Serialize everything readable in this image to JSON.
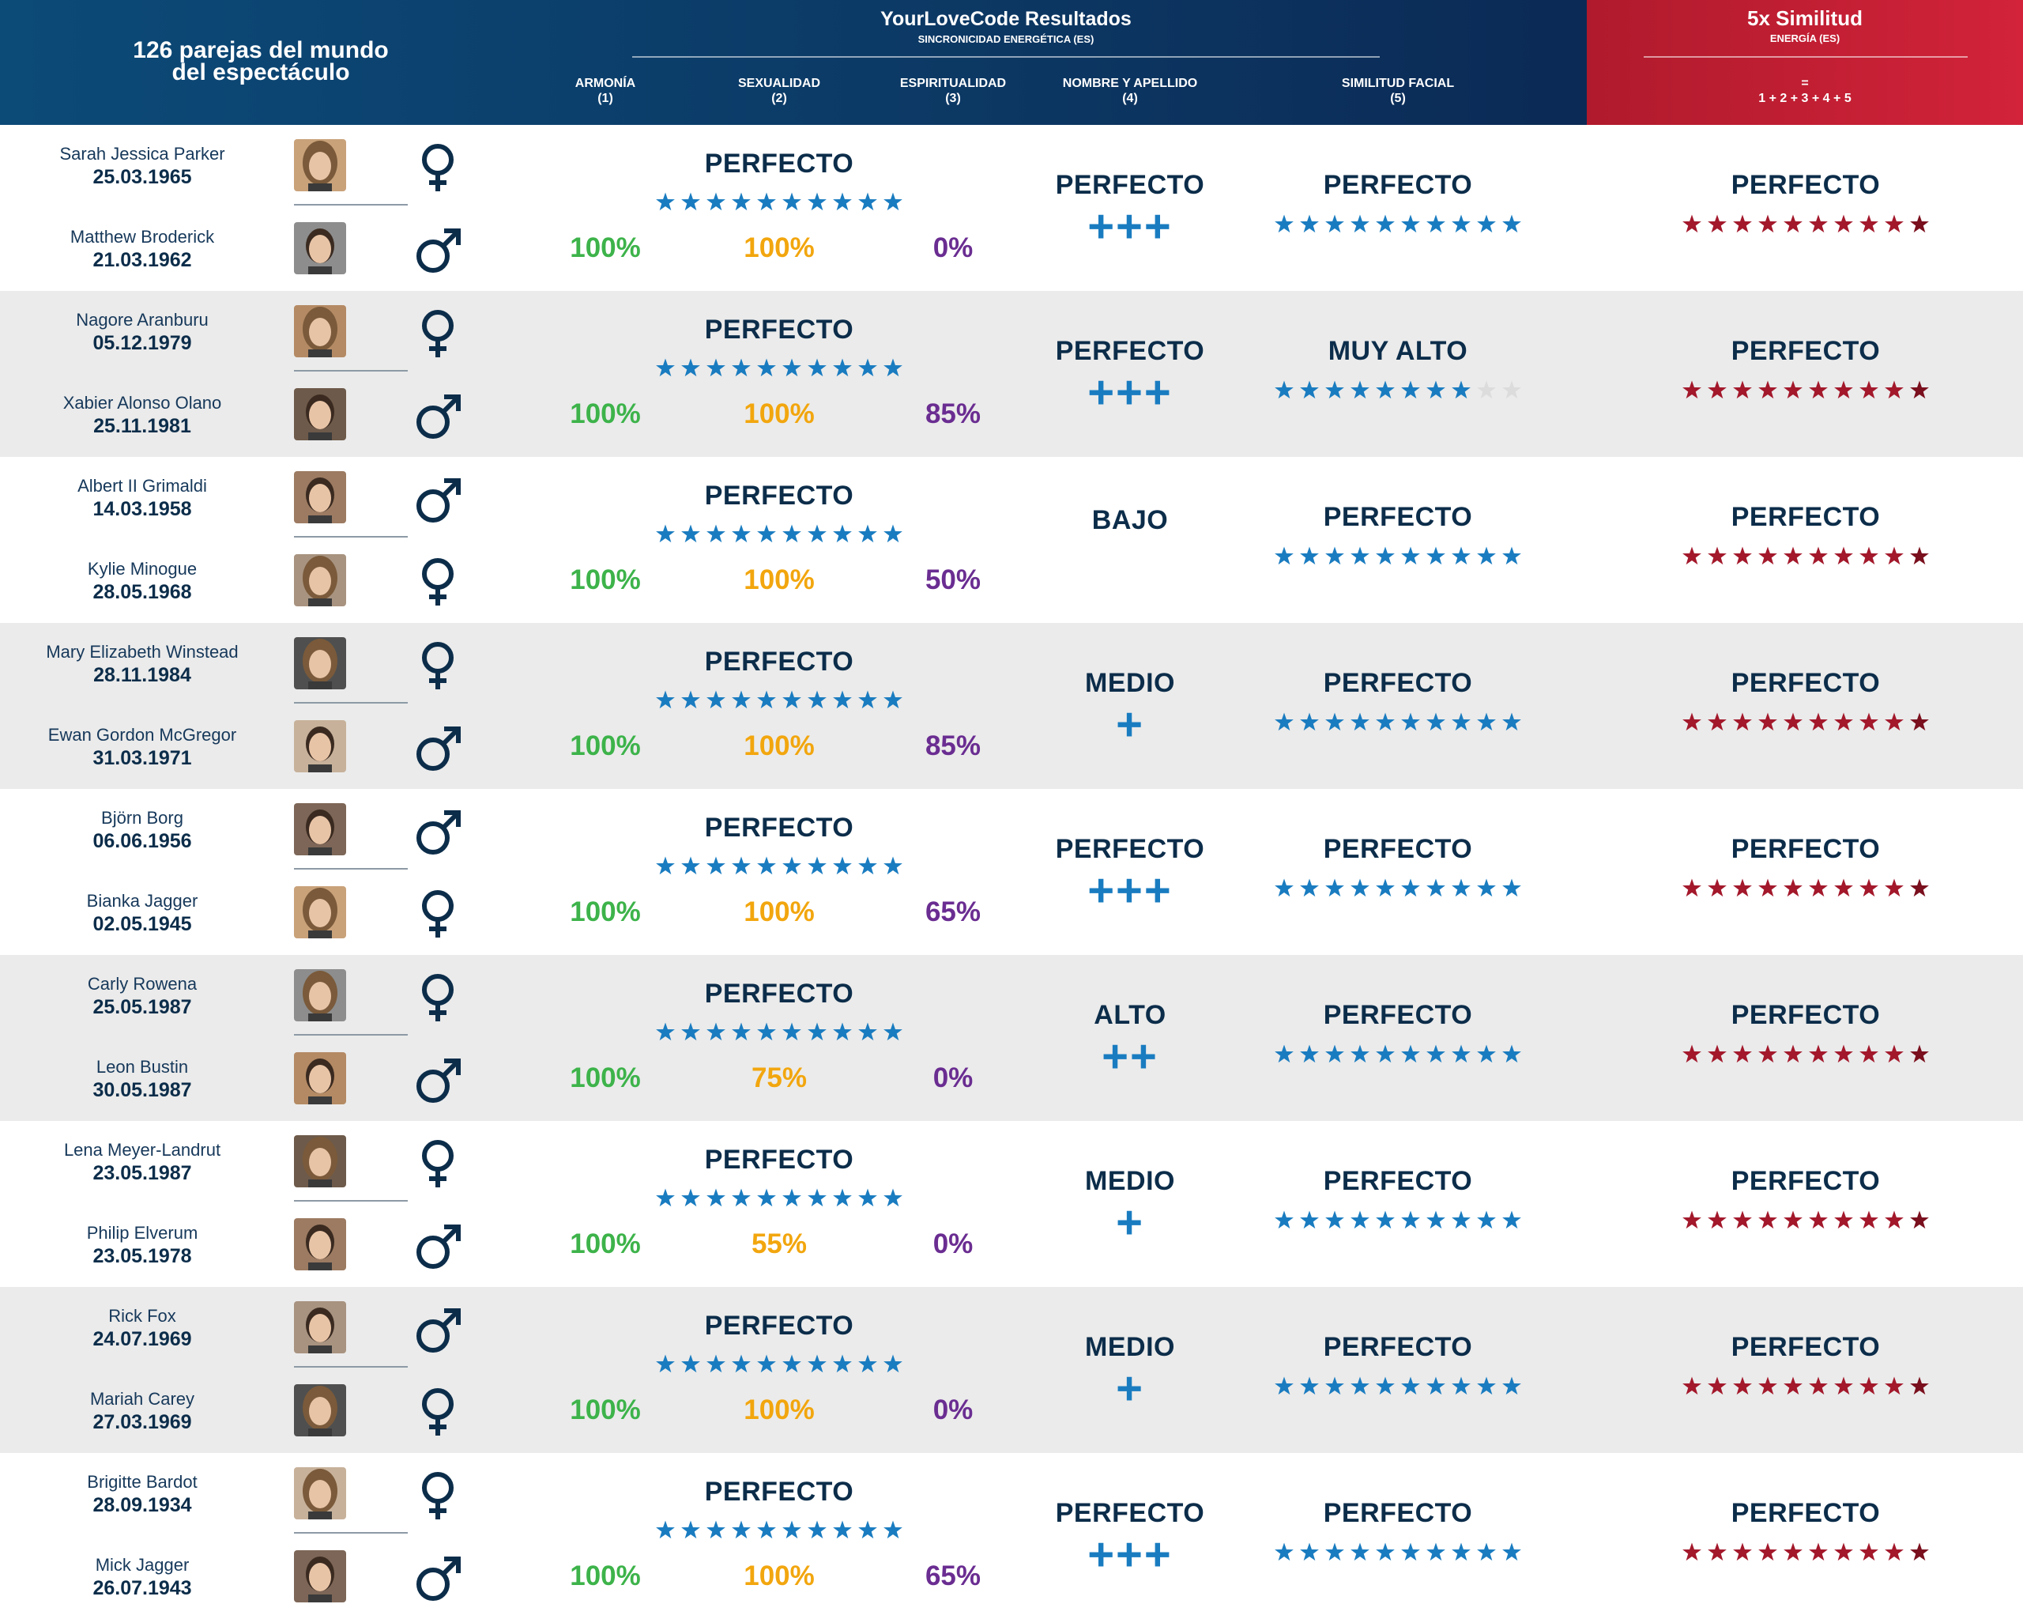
{
  "header": {
    "title_line1": "126 parejas del mundo",
    "title_line2": "del espectáculo",
    "brand": "YourLoveCode Resultados",
    "brand_sub": "SINCRONICIDAD ENERGÉTICA (ES)",
    "columns": [
      {
        "label": "ARMONÍA",
        "num": "(1)"
      },
      {
        "label": "SEXUALIDAD",
        "num": "(2)"
      },
      {
        "label": "ESPIRITUALIDAD",
        "num": "(3)"
      },
      {
        "label": "NOMBRE Y APELLIDO",
        "num": "(4)"
      },
      {
        "label": "SIMILITUD FACIAL",
        "num": "(5)"
      }
    ],
    "summary_title": "5x Similitud",
    "summary_sub": "ENERGÍA (ES)",
    "summary_eq": "=",
    "summary_formula": "1 + 2 + 3 + 4 + 5"
  },
  "colors": {
    "blue": "#1a7cc0",
    "red": "#a3182b",
    "green": "#3db34a",
    "orange": "#f2a60e",
    "purple": "#6a2d91",
    "navy": "#0c2d4a"
  },
  "couples": [
    {
      "p1": {
        "name": "Sarah Jessica Parker",
        "date": "25.03.1965",
        "sex": "female"
      },
      "p2": {
        "name": "Matthew Broderick",
        "date": "21.03.1962",
        "sex": "male"
      },
      "energy_label": "PERFECTO",
      "energy_stars": 10,
      "armonia": "100%",
      "sexualidad": "100%",
      "espiritualidad": "0%",
      "name_label": "PERFECTO",
      "name_plus": "+++",
      "face_label": "PERFECTO",
      "face_stars": 10,
      "total_label": "PERFECTO",
      "total_stars": 10
    },
    {
      "p1": {
        "name": "Nagore Aranburu",
        "date": "05.12.1979",
        "sex": "female"
      },
      "p2": {
        "name": "Xabier Alonso Olano",
        "date": "25.11.1981",
        "sex": "male"
      },
      "energy_label": "PERFECTO",
      "energy_stars": 10,
      "armonia": "100%",
      "sexualidad": "100%",
      "espiritualidad": "85%",
      "name_label": "PERFECTO",
      "name_plus": "+++",
      "face_label": "MUY ALTO",
      "face_stars": 8,
      "total_label": "PERFECTO",
      "total_stars": 10
    },
    {
      "p1": {
        "name": "Albert II Grimaldi",
        "date": "14.03.1958",
        "sex": "male"
      },
      "p2": {
        "name": "Kylie Minogue",
        "date": "28.05.1968",
        "sex": "female"
      },
      "energy_label": "PERFECTO",
      "energy_stars": 10,
      "armonia": "100%",
      "sexualidad": "100%",
      "espiritualidad": "50%",
      "name_label": "BAJO",
      "name_plus": "",
      "face_label": "PERFECTO",
      "face_stars": 10,
      "total_label": "PERFECTO",
      "total_stars": 10
    },
    {
      "p1": {
        "name": "Mary Elizabeth Winstead",
        "date": "28.11.1984",
        "sex": "female"
      },
      "p2": {
        "name": "Ewan Gordon McGregor",
        "date": "31.03.1971",
        "sex": "male"
      },
      "energy_label": "PERFECTO",
      "energy_stars": 10,
      "armonia": "100%",
      "sexualidad": "100%",
      "espiritualidad": "85%",
      "name_label": "MEDIO",
      "name_plus": "+",
      "face_label": "PERFECTO",
      "face_stars": 10,
      "total_label": "PERFECTO",
      "total_stars": 10
    },
    {
      "p1": {
        "name": "Björn Borg",
        "date": "06.06.1956",
        "sex": "male"
      },
      "p2": {
        "name": "Bianka Jagger",
        "date": "02.05.1945",
        "sex": "female"
      },
      "energy_label": "PERFECTO",
      "energy_stars": 10,
      "armonia": "100%",
      "sexualidad": "100%",
      "espiritualidad": "65%",
      "name_label": "PERFECTO",
      "name_plus": "+++",
      "face_label": "PERFECTO",
      "face_stars": 10,
      "total_label": "PERFECTO",
      "total_stars": 10
    },
    {
      "p1": {
        "name": "Carly Rowena",
        "date": "25.05.1987",
        "sex": "female"
      },
      "p2": {
        "name": "Leon Bustin",
        "date": "30.05.1987",
        "sex": "male"
      },
      "energy_label": "PERFECTO",
      "energy_stars": 10,
      "armonia": "100%",
      "sexualidad": "75%",
      "espiritualidad": "0%",
      "name_label": "ALTO",
      "name_plus": "++",
      "face_label": "PERFECTO",
      "face_stars": 10,
      "total_label": "PERFECTO",
      "total_stars": 10
    },
    {
      "p1": {
        "name": "Lena Meyer-Landrut",
        "date": "23.05.1987",
        "sex": "female"
      },
      "p2": {
        "name": "Philip Elverum",
        "date": "23.05.1978",
        "sex": "male"
      },
      "energy_label": "PERFECTO",
      "energy_stars": 10,
      "armonia": "100%",
      "sexualidad": "55%",
      "espiritualidad": "0%",
      "name_label": "MEDIO",
      "name_plus": "+",
      "face_label": "PERFECTO",
      "face_stars": 10,
      "total_label": "PERFECTO",
      "total_stars": 10
    },
    {
      "p1": {
        "name": "Rick Fox",
        "date": "24.07.1969",
        "sex": "male"
      },
      "p2": {
        "name": "Mariah Carey",
        "date": "27.03.1969",
        "sex": "female"
      },
      "energy_label": "PERFECTO",
      "energy_stars": 10,
      "armonia": "100%",
      "sexualidad": "100%",
      "espiritualidad": "0%",
      "name_label": "MEDIO",
      "name_plus": "+",
      "face_label": "PERFECTO",
      "face_stars": 10,
      "total_label": "PERFECTO",
      "total_stars": 10
    },
    {
      "p1": {
        "name": "Brigitte Bardot",
        "date": "28.09.1934",
        "sex": "female"
      },
      "p2": {
        "name": "Mick Jagger",
        "date": "26.07.1943",
        "sex": "male"
      },
      "energy_label": "PERFECTO",
      "energy_stars": 10,
      "armonia": "100%",
      "sexualidad": "100%",
      "espiritualidad": "65%",
      "name_label": "PERFECTO",
      "name_plus": "+++",
      "face_label": "PERFECTO",
      "face_stars": 10,
      "total_label": "PERFECTO",
      "total_stars": 10
    }
  ]
}
